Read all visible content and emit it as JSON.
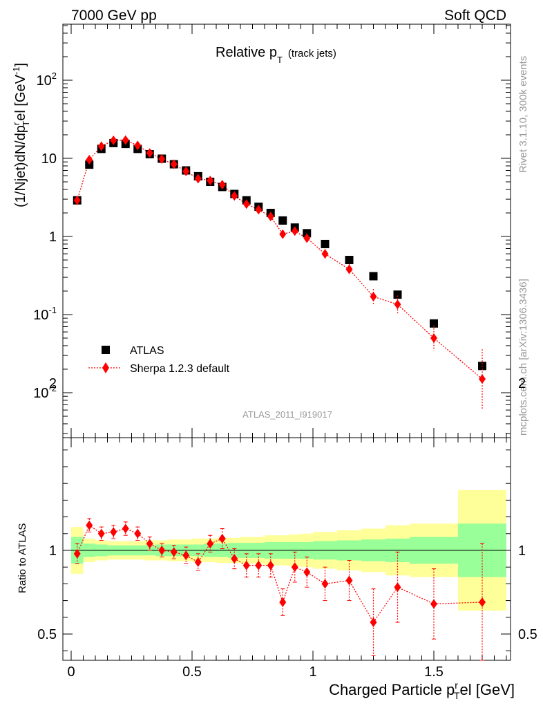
{
  "header": {
    "left": "7000 GeV pp",
    "right": "Soft QCD"
  },
  "side_text": {
    "top": "Rivet 3.1.10,  300k events",
    "bottom": "mcplots.cern.ch [arXiv:1306.3436]"
  },
  "watermark": "ATLAS_2011_I919017",
  "colors": {
    "mc": "#ff0000",
    "data": "#000000",
    "band_inner": "#99ff99",
    "band_outer": "#ffff99"
  },
  "chart_data": [
    {
      "type": "scatter",
      "title_main": "Relative p",
      "title_sub": "T",
      "title_note": "(track jets)",
      "ylabel": "(1/Njet)dN/dp^r_T el [GeV^-1]",
      "yscale": "log",
      "ylim": [
        0.003,
        500
      ],
      "xlim": [
        -0.05,
        1.85
      ],
      "yticks": [
        "10^-2",
        "10^-1",
        "1",
        "10",
        "10^2"
      ],
      "legend": {
        "placement": "bottom-left",
        "data_label": "ATLAS",
        "mc_label": "Sherpa 1.2.3 default"
      },
      "x": [
        0.025,
        0.075,
        0.125,
        0.175,
        0.225,
        0.275,
        0.325,
        0.375,
        0.425,
        0.475,
        0.525,
        0.575,
        0.625,
        0.675,
        0.725,
        0.775,
        0.825,
        0.875,
        0.925,
        0.975,
        1.05,
        1.15,
        1.25,
        1.35,
        1.5,
        1.7
      ],
      "series": [
        {
          "name": "ATLAS",
          "values": [
            2.9,
            8.3,
            13.2,
            15.7,
            15.3,
            13.2,
            11.3,
            9.9,
            8.4,
            7.0,
            5.9,
            5.0,
            4.3,
            3.5,
            2.9,
            2.4,
            2.0,
            1.6,
            1.3,
            1.1,
            0.8,
            0.5,
            0.31,
            0.18,
            0.077,
            0.022
          ]
        },
        {
          "name": "Sherpa 1.2.3 default",
          "values": [
            2.9,
            9.6,
            14.3,
            17.0,
            17.1,
            14.6,
            11.7,
            9.8,
            8.4,
            6.8,
            5.5,
            5.2,
            4.6,
            3.3,
            2.6,
            2.2,
            1.8,
            1.07,
            1.17,
            0.95,
            0.6,
            0.38,
            0.17,
            0.135,
            0.05,
            0.015
          ]
        }
      ],
      "mc_yerr_factor": [
        1.05,
        1.05,
        1.05,
        1.05,
        1.05,
        1.05,
        1.05,
        1.05,
        1.05,
        1.05,
        1.05,
        1.05,
        1.06,
        1.06,
        1.07,
        1.08,
        1.08,
        1.1,
        1.12,
        1.13,
        1.15,
        1.18,
        1.25,
        1.3,
        1.45,
        2.4
      ]
    },
    {
      "type": "scatter",
      "ylabel": "Ratio to ATLAS",
      "xlabel": "Charged Particle p^r_T el [GeV]",
      "ylim": [
        0.35,
        2.35
      ],
      "yticks": [
        "0.5",
        "1",
        "2"
      ],
      "xticks": [
        "0",
        "0.5",
        "1",
        "1.5"
      ],
      "reference_line": 1,
      "bin_edges": [
        0.0,
        0.05,
        0.1,
        0.15,
        0.2,
        0.25,
        0.3,
        0.35,
        0.4,
        0.45,
        0.5,
        0.55,
        0.6,
        0.65,
        0.7,
        0.75,
        0.8,
        0.85,
        0.9,
        0.95,
        1.0,
        1.1,
        1.2,
        1.3,
        1.4,
        1.6,
        1.8
      ],
      "band_inner_halfwidth": [
        0.08,
        0.04,
        0.035,
        0.03,
        0.03,
        0.03,
        0.03,
        0.035,
        0.035,
        0.035,
        0.035,
        0.04,
        0.04,
        0.045,
        0.045,
        0.045,
        0.05,
        0.05,
        0.05,
        0.05,
        0.055,
        0.06,
        0.065,
        0.07,
        0.08,
        0.16
      ],
      "band_outer_halfwidth": [
        0.14,
        0.07,
        0.06,
        0.055,
        0.055,
        0.055,
        0.06,
        0.06,
        0.065,
        0.065,
        0.07,
        0.07,
        0.075,
        0.075,
        0.08,
        0.08,
        0.09,
        0.09,
        0.095,
        0.1,
        0.11,
        0.12,
        0.13,
        0.15,
        0.16,
        0.36
      ],
      "x": [
        0.025,
        0.075,
        0.125,
        0.175,
        0.225,
        0.275,
        0.325,
        0.375,
        0.425,
        0.475,
        0.525,
        0.575,
        0.625,
        0.675,
        0.725,
        0.775,
        0.825,
        0.875,
        0.925,
        0.975,
        1.05,
        1.15,
        1.25,
        1.35,
        1.5,
        1.7
      ],
      "values": [
        0.98,
        1.15,
        1.1,
        1.11,
        1.13,
        1.1,
        1.04,
        1.0,
        0.99,
        0.97,
        0.93,
        1.04,
        1.07,
        0.95,
        0.91,
        0.91,
        0.91,
        0.69,
        0.9,
        0.87,
        0.8,
        0.82,
        0.57,
        0.78,
        0.68,
        0.69
      ],
      "yerr": [
        0.06,
        0.04,
        0.04,
        0.04,
        0.04,
        0.04,
        0.04,
        0.04,
        0.04,
        0.05,
        0.05,
        0.05,
        0.06,
        0.06,
        0.07,
        0.07,
        0.07,
        0.08,
        0.09,
        0.09,
        0.1,
        0.12,
        0.2,
        0.21,
        0.21,
        0.35
      ]
    }
  ]
}
